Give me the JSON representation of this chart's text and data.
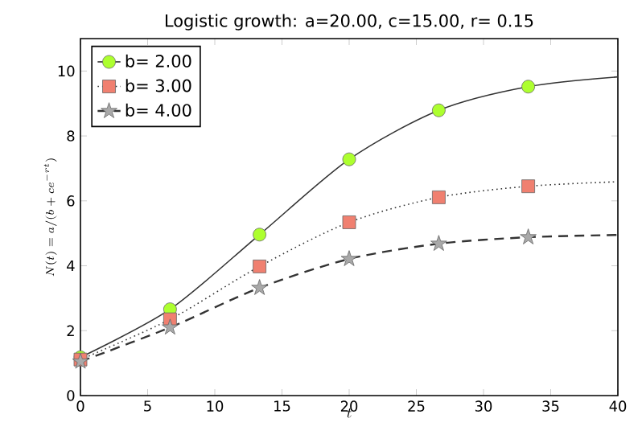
{
  "chart_data": {
    "type": "line",
    "title": "Logistic growth: a=20.00, c=15.00, r= 0.15",
    "xlabel": "t",
    "ylabel": "N(t) =a/(b+ce^{-rt})",
    "x": [
      0,
      6.67,
      13.33,
      20,
      26.67,
      33.33,
      40
    ],
    "series": [
      {
        "name": "b= 2.00",
        "color": "#adff2f",
        "marker": "circle",
        "line_style": "solid",
        "values": [
          1.18,
          2.66,
          4.96,
          7.28,
          8.79,
          9.52,
          9.82
        ]
      },
      {
        "name": "b= 3.00",
        "color": "#f08070",
        "marker": "square",
        "line_style": "dotted",
        "values": [
          1.11,
          2.35,
          3.98,
          5.34,
          6.11,
          6.45,
          6.59
        ]
      },
      {
        "name": "b= 4.00",
        "color": "#a9a9a9",
        "marker": "star",
        "line_style": "dashed",
        "values": [
          1.05,
          2.1,
          3.32,
          4.21,
          4.68,
          4.88,
          4.95
        ]
      }
    ],
    "xlim": [
      0,
      40
    ],
    "xticks": [
      0,
      5,
      10,
      15,
      20,
      25,
      30,
      35,
      40
    ],
    "ylim": [
      0,
      11
    ],
    "yticks": [
      0,
      2,
      4,
      6,
      8,
      10
    ],
    "grid": false,
    "legend": "top left"
  }
}
